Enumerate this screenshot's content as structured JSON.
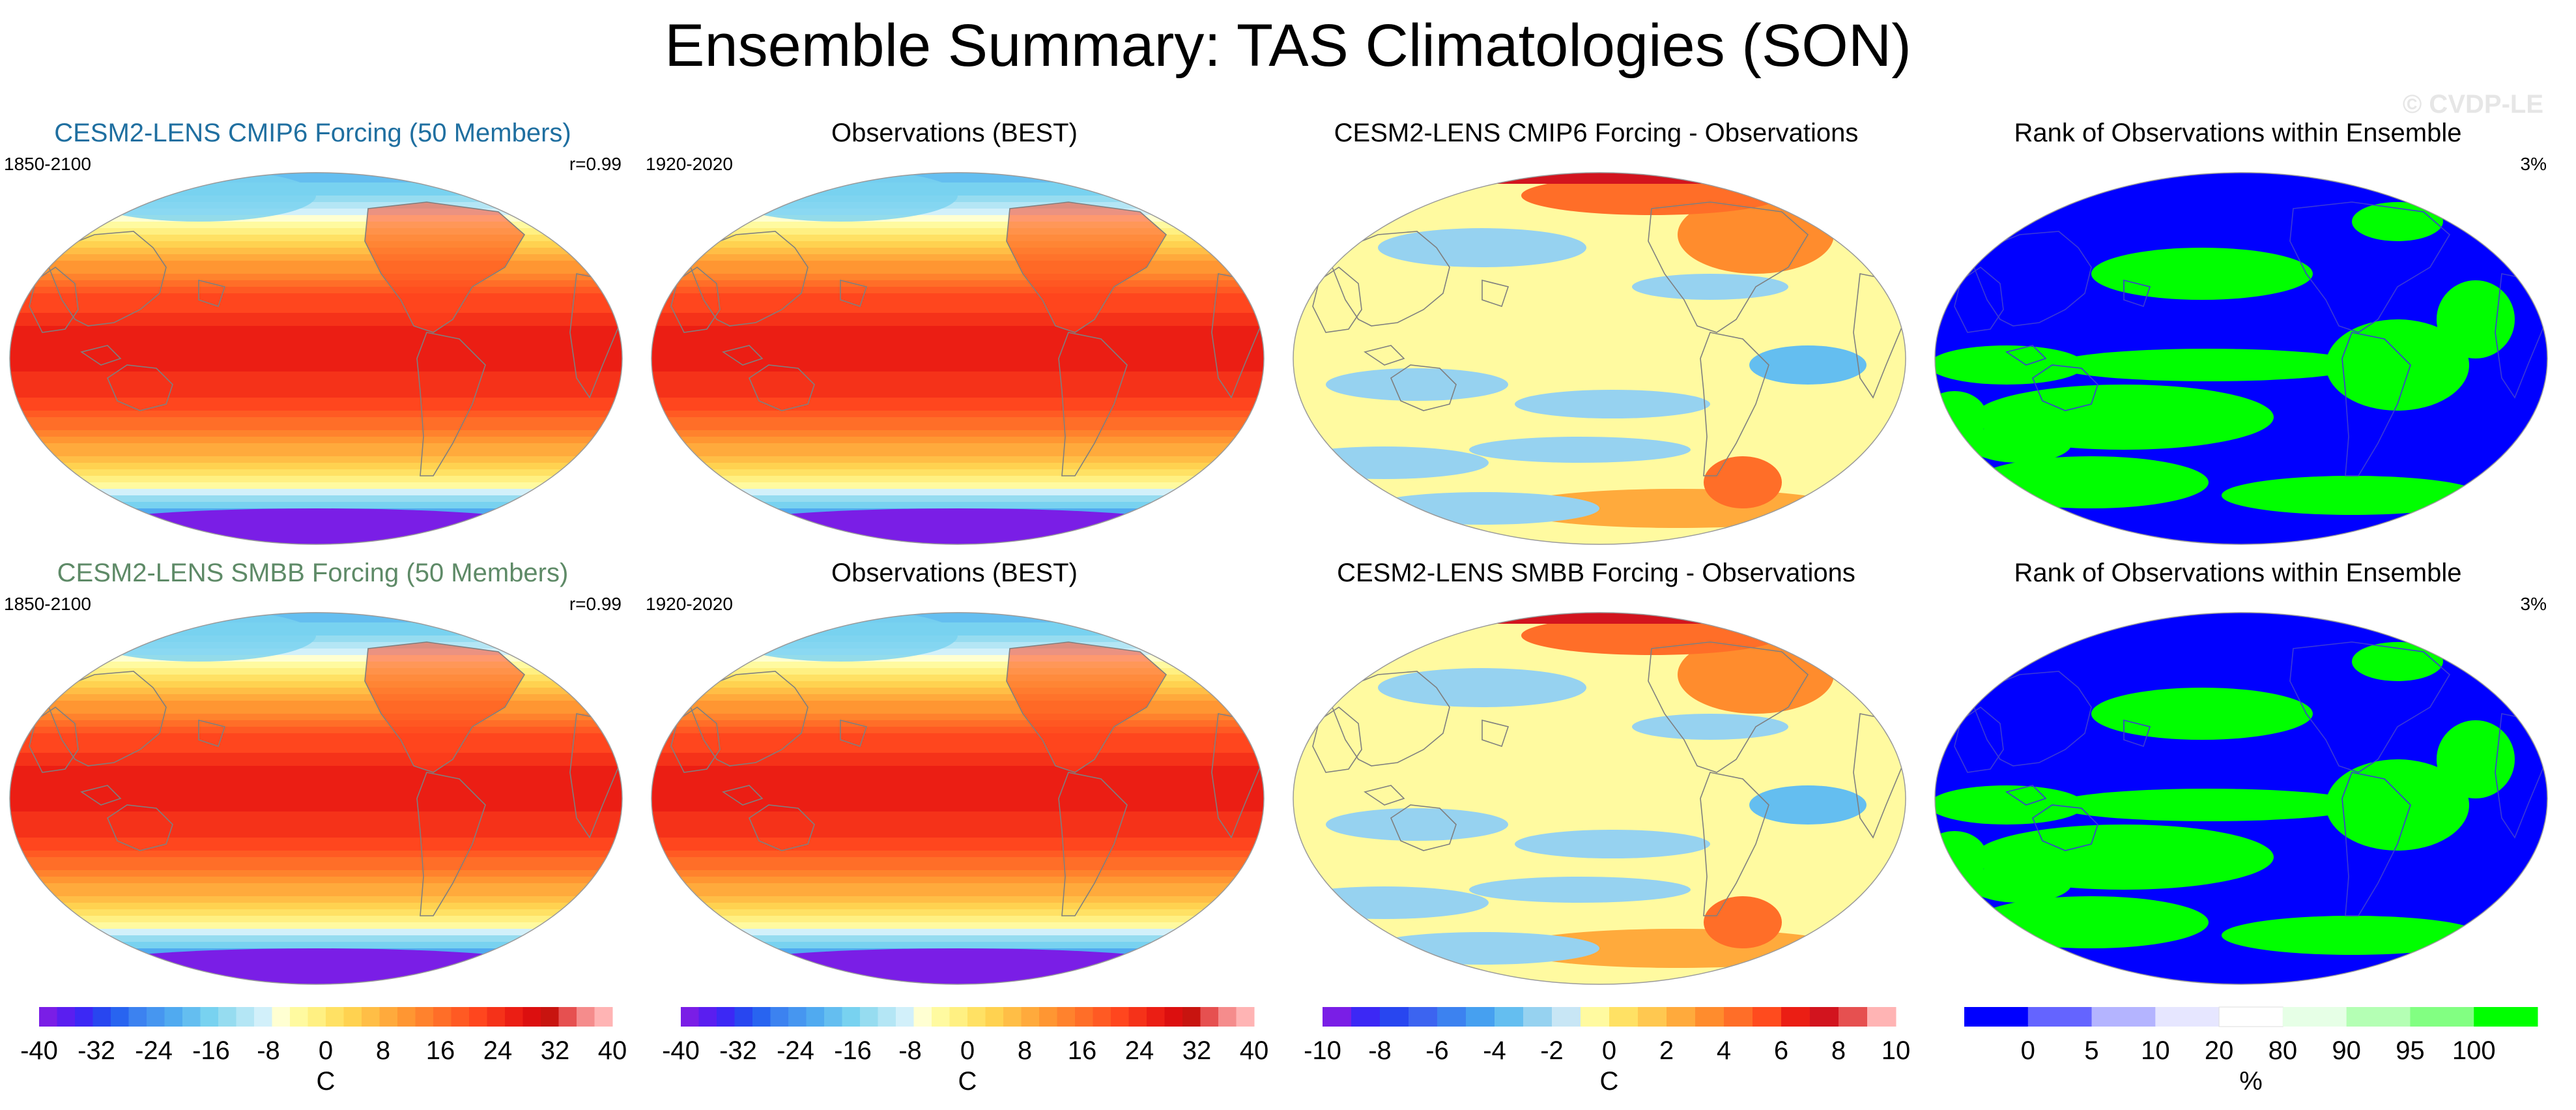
{
  "page": {
    "title": "Ensemble Summary: TAS Climatologies (SON)",
    "watermark": "© CVDP-LE",
    "colors": {
      "row1_title": "#1f6fa0",
      "row2_title": "#5e8a67",
      "land_outline": "#7f7f7f"
    }
  },
  "panels": [
    {
      "title": "CESM2-LENS CMIP6 Forcing (50 Members)",
      "left_label": "1850-2100",
      "right_label": "r=0.99",
      "field": "climatology",
      "title_color": "#1f6fa0"
    },
    {
      "title": "Observations (BEST)",
      "left_label": "1920-2020",
      "right_label": "",
      "field": "climatology",
      "title_color": "#000000"
    },
    {
      "title": "CESM2-LENS CMIP6 Forcing - Observations",
      "left_label": "",
      "right_label": "",
      "field": "difference",
      "title_color": "#000000"
    },
    {
      "title": "Rank of Observations within Ensemble",
      "left_label": "",
      "right_label": "3%",
      "field": "rank",
      "title_color": "#000000"
    },
    {
      "title": "CESM2-LENS SMBB Forcing (50 Members)",
      "left_label": "1850-2100",
      "right_label": "r=0.99",
      "field": "climatology",
      "title_color": "#5e8a67"
    },
    {
      "title": "Observations (BEST)",
      "left_label": "1920-2020",
      "right_label": "",
      "field": "climatology",
      "title_color": "#000000"
    },
    {
      "title": "CESM2-LENS SMBB Forcing - Observations",
      "left_label": "",
      "right_label": "",
      "field": "difference",
      "title_color": "#000000"
    },
    {
      "title": "Rank of Observations within Ensemble",
      "left_label": "",
      "right_label": "3%",
      "field": "rank",
      "title_color": "#000000"
    }
  ],
  "colorbars": [
    {
      "unit": "C",
      "tick_labels": [
        "-40",
        "-32",
        "-24",
        "-16",
        "-8",
        "0",
        "8",
        "16",
        "24",
        "32",
        "40"
      ],
      "colors": [
        "#7a1ee6",
        "#5a1ef0",
        "#3c28f5",
        "#2846f0",
        "#2864f0",
        "#3c82f0",
        "#4696f0",
        "#50aaf0",
        "#64bef0",
        "#78d2f0",
        "#96dcf0",
        "#b4e6f5",
        "#d2f0fa",
        "#ffffd2",
        "#fffaa0",
        "#fff082",
        "#ffe164",
        "#ffd250",
        "#ffbe46",
        "#ffaa3c",
        "#ff9632",
        "#ff822d",
        "#ff6e28",
        "#ff5a23",
        "#ff461e",
        "#f53219",
        "#eb1e14",
        "#dc0f0f",
        "#c8140f",
        "#e65050",
        "#f58c8c",
        "#ffb4b4"
      ]
    },
    {
      "unit": "C",
      "tick_labels": [
        "-40",
        "-32",
        "-24",
        "-16",
        "-8",
        "0",
        "8",
        "16",
        "24",
        "32",
        "40"
      ],
      "colors": [
        "#7a1ee6",
        "#5a1ef0",
        "#3c28f5",
        "#2846f0",
        "#2864f0",
        "#3c82f0",
        "#4696f0",
        "#50aaf0",
        "#64bef0",
        "#78d2f0",
        "#96dcf0",
        "#b4e6f5",
        "#d2f0fa",
        "#ffffd2",
        "#fffaa0",
        "#fff082",
        "#ffe164",
        "#ffd250",
        "#ffbe46",
        "#ffaa3c",
        "#ff9632",
        "#ff822d",
        "#ff6e28",
        "#ff5a23",
        "#ff461e",
        "#f53219",
        "#eb1e14",
        "#dc0f0f",
        "#c8140f",
        "#e65050",
        "#f58c8c",
        "#ffb4b4"
      ]
    },
    {
      "unit": "C",
      "tick_labels": [
        "-10",
        "-8",
        "-6",
        "-4",
        "-2",
        "0",
        "2",
        "4",
        "6",
        "8",
        "10"
      ],
      "colors": [
        "#7a1ee6",
        "#3c28f5",
        "#2846f0",
        "#3c64f0",
        "#3c82f0",
        "#46a0f0",
        "#64bef0",
        "#96d2f0",
        "#c8e6f5",
        "#fffaa0",
        "#ffe164",
        "#ffc850",
        "#ffaa3c",
        "#ff8c2d",
        "#ff6e28",
        "#ff4b1e",
        "#eb1e14",
        "#d2141e",
        "#e65050",
        "#ffb4b4"
      ]
    },
    {
      "unit": "%",
      "tick_labels": [
        "0",
        "5",
        "10",
        "20",
        "80",
        "90",
        "95",
        "100"
      ],
      "colors": [
        "#0000ff",
        "#6464ff",
        "#b4b4ff",
        "#e6e6ff",
        "#ffffff",
        "#e6ffe6",
        "#b4ffb4",
        "#82ff82",
        "#00ff00"
      ]
    }
  ],
  "chart_data": [
    {
      "type": "heatmap",
      "title": "CESM2-LENS CMIP6 Forcing (50 Members)",
      "period": "1850-2100",
      "pattern_correlation": 0.99,
      "units": "C",
      "zonal_profile_lat_deg": [
        -90,
        -75,
        -60,
        -45,
        -30,
        -15,
        0,
        15,
        30,
        45,
        60,
        75,
        90
      ],
      "zonal_profile_values": [
        -38,
        -24,
        -4,
        8,
        17,
        24,
        26,
        25,
        20,
        10,
        0,
        -14,
        -20
      ],
      "contour_range": [
        -40,
        40
      ]
    },
    {
      "type": "heatmap",
      "title": "Observations (BEST)",
      "period": "1920-2020",
      "units": "C",
      "zonal_profile_lat_deg": [
        -90,
        -75,
        -60,
        -45,
        -30,
        -15,
        0,
        15,
        30,
        45,
        60,
        75,
        90
      ],
      "zonal_profile_values": [
        -38,
        -25,
        -4,
        8,
        17,
        24,
        26,
        25,
        20,
        10,
        0,
        -14,
        -20
      ],
      "contour_range": [
        -40,
        40
      ]
    },
    {
      "type": "heatmap",
      "title": "CESM2-LENS CMIP6 Forcing - Observations",
      "units": "C",
      "contour_range": [
        -10,
        10
      ]
    },
    {
      "type": "heatmap",
      "title": "Rank of Observations within Ensemble",
      "area_percent": "3%",
      "units": "%",
      "bins": [
        0,
        5,
        10,
        20,
        80,
        90,
        95,
        100
      ]
    },
    {
      "type": "heatmap",
      "title": "CESM2-LENS SMBB Forcing (50 Members)",
      "period": "1850-2100",
      "pattern_correlation": 0.99,
      "units": "C",
      "zonal_profile_lat_deg": [
        -90,
        -75,
        -60,
        -45,
        -30,
        -15,
        0,
        15,
        30,
        45,
        60,
        75,
        90
      ],
      "zonal_profile_values": [
        -38,
        -24,
        -4,
        8,
        17,
        24,
        26,
        25,
        20,
        10,
        0,
        -14,
        -20
      ],
      "contour_range": [
        -40,
        40
      ]
    },
    {
      "type": "heatmap",
      "title": "Observations (BEST)",
      "period": "1920-2020",
      "units": "C",
      "zonal_profile_lat_deg": [
        -90,
        -75,
        -60,
        -45,
        -30,
        -15,
        0,
        15,
        30,
        45,
        60,
        75,
        90
      ],
      "zonal_profile_values": [
        -38,
        -25,
        -4,
        8,
        17,
        24,
        26,
        25,
        20,
        10,
        0,
        -14,
        -20
      ],
      "contour_range": [
        -40,
        40
      ]
    },
    {
      "type": "heatmap",
      "title": "CESM2-LENS SMBB Forcing - Observations",
      "units": "C",
      "contour_range": [
        -10,
        10
      ]
    },
    {
      "type": "heatmap",
      "title": "Rank of Observations within Ensemble",
      "area_percent": "3%",
      "units": "%",
      "bins": [
        0,
        5,
        10,
        20,
        80,
        90,
        95,
        100
      ]
    }
  ]
}
